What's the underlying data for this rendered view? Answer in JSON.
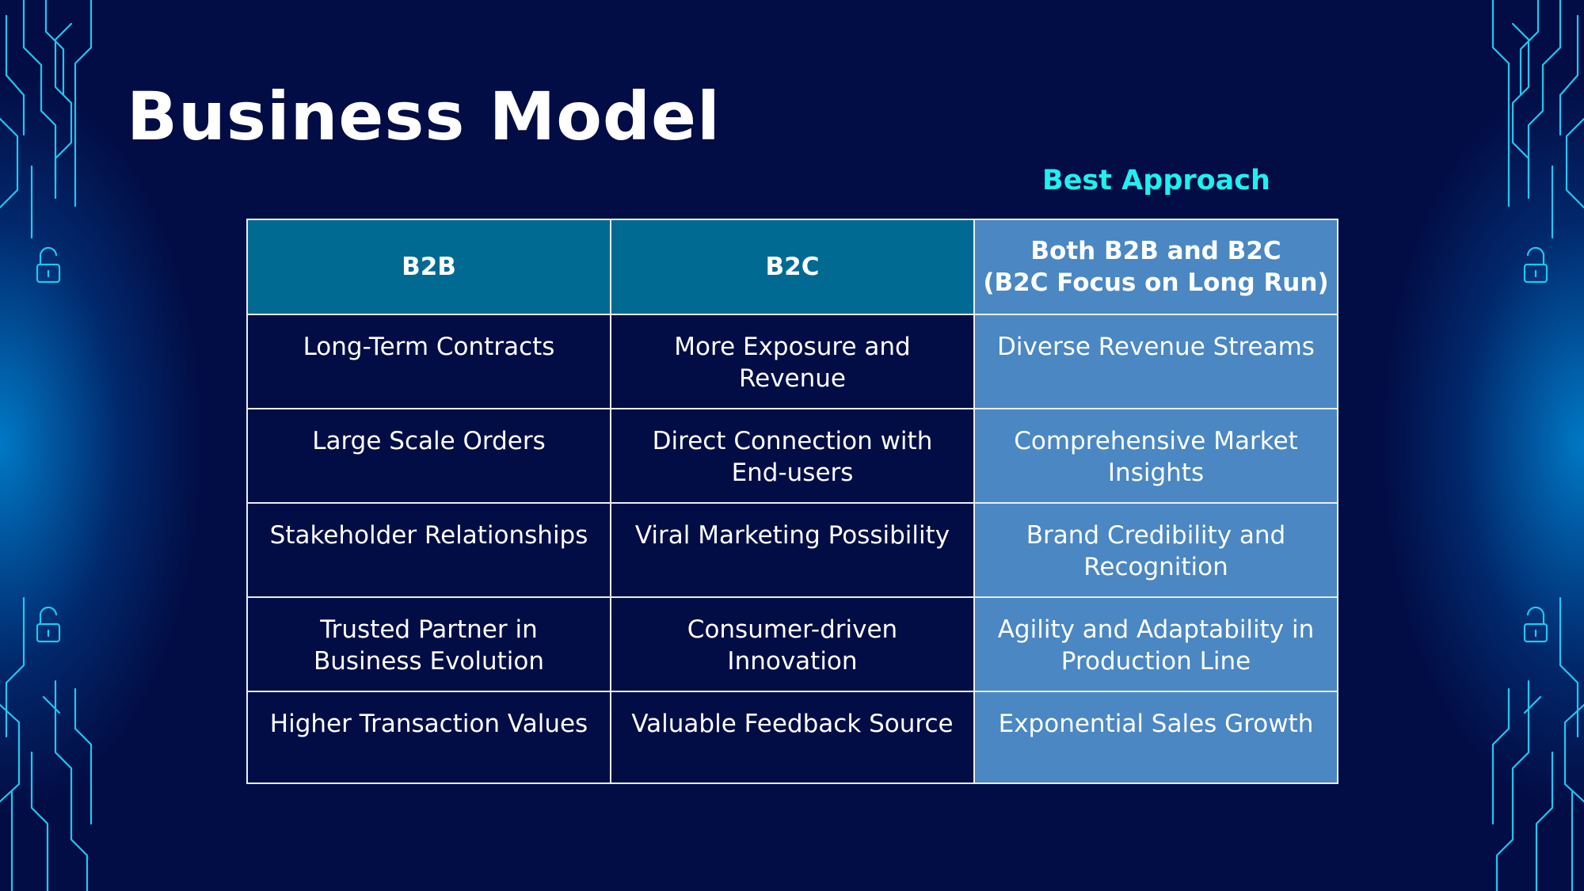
{
  "slide": {
    "title": "Business Model",
    "best_label": "Best Approach"
  },
  "table": {
    "headers": [
      "B2B",
      "B2C",
      "Both B2B and B2C\n(B2C Focus on Long Run)"
    ],
    "rows": [
      [
        "Long-Term Contracts",
        "More Exposure and Revenue",
        "Diverse Revenue Streams"
      ],
      [
        "Large Scale Orders",
        "Direct Connection with End-users",
        "Comprehensive Market Insights"
      ],
      [
        "Stakeholder Relationships",
        "Viral Marketing Possibility",
        "Brand Credibility and Recognition"
      ],
      [
        "Trusted Partner in Business Evolution",
        "Consumer-driven Innovation",
        "Agility and Adaptability in Production Line"
      ],
      [
        "Higher Transaction Values",
        "Valuable Feedback Source",
        "Exponential Sales Growth"
      ]
    ]
  },
  "colors": {
    "background": "#020d45",
    "header_cell": "#006a92",
    "best_column": "#4a87c3",
    "accent_cyan": "#1ff0f0",
    "circuit_line": "#1ec8f0"
  },
  "icons": [
    "circuit-decoration",
    "unlock-icon"
  ]
}
